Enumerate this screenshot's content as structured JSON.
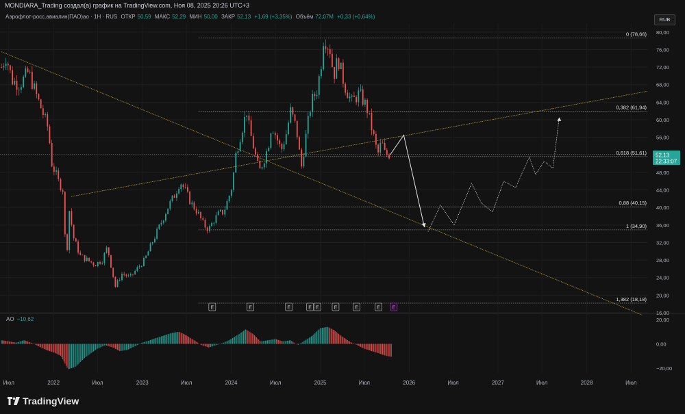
{
  "header": {
    "title": "MONDIARA_Trading создал(а) график на TradingView.com, Ноя 08, 2025 20:26 UTC+3"
  },
  "legend": {
    "symbol": "Аэрофлот-росс.авиалин(ПАО)ао · 1Н · RUS",
    "open_label": "ОТКР",
    "open": "50,59",
    "high_label": "МАКС",
    "high": "52,29",
    "low_label": "МИН",
    "low": "50,00",
    "close_label": "ЗАКР",
    "close": "52,13",
    "change": "+1,69 (+3,35%)",
    "volume_label": "Объём",
    "volume": "72,07M",
    "volume_change": "+0,33 (+0,64%)"
  },
  "currency": "RUB",
  "price_tag": {
    "value": "52,13",
    "timer": "22:33:07"
  },
  "ao": {
    "name": "AO",
    "value": "−10,62"
  },
  "logo": "TradingView",
  "colors": {
    "background": "#131313",
    "up": "#26a69a",
    "down": "#ef5350",
    "trendline": "#c8b432",
    "fib": "#8a8a8a",
    "projection": "#e6e6e6",
    "earnings_current": "#9c27b0"
  },
  "chart_data": [
    {
      "type": "candlestick",
      "ylim": [
        16,
        82
      ],
      "yticks": [
        16,
        20,
        24,
        28,
        32,
        36,
        40,
        44,
        48,
        52,
        56,
        60,
        64,
        68,
        72,
        76,
        80
      ],
      "ytick_labels": [
        "16,00",
        "20,00",
        "24,00",
        "28,00",
        "32,00",
        "36,00",
        "40,00",
        "44,00",
        "48,00",
        "52,00",
        "56,00",
        "60,00",
        "64,00",
        "68,00",
        "72,00",
        "76,00",
        "80,00"
      ],
      "xlabels": [
        "Июл",
        "2022",
        "Июл",
        "2023",
        "Июл",
        "2024",
        "Июл",
        "2025",
        "Июл",
        "2026",
        "Июл",
        "2027",
        "Июл",
        "2028",
        "Июл"
      ],
      "xlim": [
        "2021-05-26",
        "2028-09-06"
      ],
      "series": [
        {
          "name": "",
          "points": [
            [
              "2021-06-01",
              72
            ],
            [
              "2021-06-20",
              74.5
            ],
            [
              "2021-07-15",
              69
            ],
            [
              "2021-08-15",
              68
            ],
            [
              "2021-09-20",
              71
            ],
            [
              "2021-10-20",
              66
            ],
            [
              "2021-11-15",
              62
            ],
            [
              "2021-12-10",
              58
            ],
            [
              "2021-12-25",
              50
            ],
            [
              "2022-01-08",
              48
            ],
            [
              "2022-01-20",
              46
            ],
            [
              "2022-02-10",
              44
            ],
            [
              "2022-02-22",
              26
            ],
            [
              "2022-03-05",
              40
            ],
            [
              "2022-03-25",
              33
            ],
            [
              "2022-04-20",
              29
            ],
            [
              "2022-05-20",
              28
            ],
            [
              "2022-06-20",
              27
            ],
            [
              "2022-07-20",
              28
            ],
            [
              "2022-08-10",
              31
            ],
            [
              "2022-08-28",
              26
            ],
            [
              "2022-09-12",
              22
            ],
            [
              "2022-10-10",
              25
            ],
            [
              "2022-11-10",
              24
            ],
            [
              "2022-12-10",
              26
            ],
            [
              "2023-01-10",
              28
            ],
            [
              "2023-02-10",
              32
            ],
            [
              "2023-03-15",
              36
            ],
            [
              "2023-04-15",
              40
            ],
            [
              "2023-05-15",
              43
            ],
            [
              "2023-06-05",
              46
            ],
            [
              "2023-06-25",
              44
            ],
            [
              "2023-07-20",
              41
            ],
            [
              "2023-08-15",
              39
            ],
            [
              "2023-09-10",
              36
            ],
            [
              "2023-10-01",
              35
            ],
            [
              "2023-10-20",
              37
            ],
            [
              "2023-11-10",
              38.5
            ],
            [
              "2023-12-01",
              39
            ],
            [
              "2023-12-20",
              42
            ],
            [
              "2024-01-05",
              45
            ],
            [
              "2024-01-20",
              52
            ],
            [
              "2024-02-10",
              57
            ],
            [
              "2024-03-05",
              62
            ],
            [
              "2024-03-15",
              58
            ],
            [
              "2024-04-05",
              53
            ],
            [
              "2024-04-25",
              48
            ],
            [
              "2024-05-15",
              51
            ],
            [
              "2024-06-01",
              54
            ],
            [
              "2024-06-15",
              59
            ],
            [
              "2024-07-05",
              56
            ],
            [
              "2024-07-25",
              53
            ],
            [
              "2024-08-15",
              57
            ],
            [
              "2024-09-01",
              62
            ],
            [
              "2024-09-25",
              58
            ],
            [
              "2024-10-15",
              49
            ],
            [
              "2024-11-05",
              57
            ],
            [
              "2024-11-25",
              64
            ],
            [
              "2024-12-20",
              67
            ],
            [
              "2025-01-05",
              73
            ],
            [
              "2025-01-15",
              79
            ],
            [
              "2025-02-10",
              76
            ],
            [
              "2025-02-25",
              70
            ],
            [
              "2025-03-15",
              74
            ],
            [
              "2025-04-10",
              68
            ],
            [
              "2025-05-10",
              64
            ],
            [
              "2025-06-10",
              66
            ],
            [
              "2025-07-10",
              63
            ],
            [
              "2025-08-05",
              57
            ],
            [
              "2025-08-25",
              52
            ],
            [
              "2025-09-10",
              55
            ],
            [
              "2025-09-25",
              52
            ],
            [
              "2025-10-15",
              52.13
            ]
          ]
        }
      ],
      "fibonacci": [
        {
          "label": "0 (78,66)",
          "value": 78.66
        },
        {
          "label": "0,382 (61,94)",
          "value": 61.94
        },
        {
          "label": "0,618 (51,61)",
          "value": 51.61
        },
        {
          "label": "0,88 (40,15)",
          "value": 40.15
        },
        {
          "label": "1 (34,90)",
          "value": 34.9
        },
        {
          "label": "1,382 (18,18)",
          "value": 18.18
        }
      ],
      "trendlines": [
        {
          "from": [
            "2021-06-01",
            75.5
          ],
          "to": [
            "2028-08-15",
            15.5
          ]
        },
        {
          "from": [
            "2022-03-15",
            42.5
          ],
          "to": [
            "2028-09-06",
            66.5
          ]
        }
      ],
      "projection": {
        "solid": [
          [
            "2025-10-15",
            52
          ],
          [
            "2025-12-10",
            56.5
          ],
          [
            "2026-03-05",
            35.5
          ]
        ],
        "dotted": [
          [
            "2026-03-20",
            34.5
          ],
          [
            "2026-05-10",
            40.5
          ],
          [
            "2026-07-05",
            36
          ],
          [
            "2026-09-15",
            45.5
          ],
          [
            "2026-10-25",
            41
          ],
          [
            "2026-12-10",
            39
          ],
          [
            "2027-01-25",
            46
          ],
          [
            "2027-03-15",
            44.5
          ],
          [
            "2027-05-10",
            51.5
          ],
          [
            "2027-06-05",
            47.5
          ],
          [
            "2027-07-10",
            50.5
          ],
          [
            "2027-08-15",
            49
          ],
          [
            "2027-09-10",
            60.5
          ]
        ]
      },
      "earnings": [
        {
          "label": "E",
          "date": "2023-10-15"
        },
        {
          "label": "E",
          "date": "2024-03-20"
        },
        {
          "label": "E",
          "date": "2024-08-25"
        },
        {
          "label": "E",
          "date": "2024-11-20"
        },
        {
          "label": "E",
          "date": "2024-12-20"
        },
        {
          "label": "E",
          "date": "2025-03-05"
        },
        {
          "label": "E",
          "date": "2025-05-30"
        },
        {
          "label": "E",
          "date": "2025-08-28"
        },
        {
          "label": "E",
          "date": "2025-10-30"
        }
      ],
      "price_line": 52.13
    },
    {
      "type": "bar",
      "name": "AO",
      "ylim": [
        -24,
        24
      ],
      "yticks": [
        -20,
        0,
        20
      ],
      "ytick_labels": [
        "−20,00",
        "0,00",
        "20,00"
      ],
      "points": [
        [
          "2021-06-01",
          3
        ],
        [
          "2021-07-01",
          2
        ],
        [
          "2021-08-01",
          1
        ],
        [
          "2021-09-01",
          3
        ],
        [
          "2021-10-01",
          1
        ],
        [
          "2021-11-01",
          -2
        ],
        [
          "2021-12-01",
          -5
        ],
        [
          "2022-01-01",
          -7
        ],
        [
          "2022-02-01",
          -10
        ],
        [
          "2022-03-01",
          -21
        ],
        [
          "2022-04-01",
          -19
        ],
        [
          "2022-05-01",
          -13
        ],
        [
          "2022-06-01",
          -8
        ],
        [
          "2022-07-01",
          -4
        ],
        [
          "2022-08-01",
          -1
        ],
        [
          "2022-09-01",
          -3
        ],
        [
          "2022-10-01",
          -6
        ],
        [
          "2022-11-01",
          -5
        ],
        [
          "2022-12-01",
          -2
        ],
        [
          "2023-01-01",
          1
        ],
        [
          "2023-02-01",
          3
        ],
        [
          "2023-03-01",
          5
        ],
        [
          "2023-04-01",
          7
        ],
        [
          "2023-05-01",
          9
        ],
        [
          "2023-06-01",
          10
        ],
        [
          "2023-07-01",
          7
        ],
        [
          "2023-08-01",
          3
        ],
        [
          "2023-09-01",
          -1
        ],
        [
          "2023-10-01",
          -3
        ],
        [
          "2023-11-01",
          -1
        ],
        [
          "2023-12-01",
          1
        ],
        [
          "2024-01-01",
          4
        ],
        [
          "2024-02-01",
          8
        ],
        [
          "2024-03-01",
          12
        ],
        [
          "2024-04-01",
          8
        ],
        [
          "2024-05-01",
          2
        ],
        [
          "2024-06-01",
          3
        ],
        [
          "2024-07-01",
          4
        ],
        [
          "2024-08-01",
          2
        ],
        [
          "2024-09-01",
          3
        ],
        [
          "2024-10-01",
          -1
        ],
        [
          "2024-11-01",
          3
        ],
        [
          "2024-12-01",
          7
        ],
        [
          "2025-01-01",
          13
        ],
        [
          "2025-02-01",
          14
        ],
        [
          "2025-03-01",
          11
        ],
        [
          "2025-04-01",
          6
        ],
        [
          "2025-05-01",
          2
        ],
        [
          "2025-06-01",
          -1
        ],
        [
          "2025-07-01",
          -4
        ],
        [
          "2025-08-01",
          -6
        ],
        [
          "2025-09-01",
          -8
        ],
        [
          "2025-10-01",
          -10
        ],
        [
          "2025-10-20",
          -10.62
        ]
      ]
    }
  ]
}
